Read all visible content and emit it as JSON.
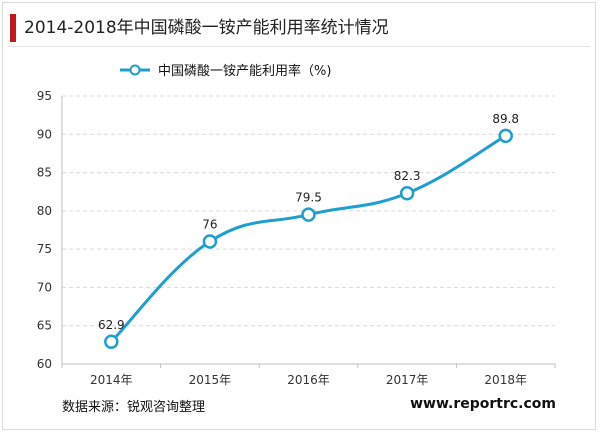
{
  "header": {
    "title": "2014-2018年中国磷酸一铵产能利用率统计情况"
  },
  "footer": {
    "source": "数据来源：锐观咨询整理",
    "website": "www.reportrc.com"
  },
  "colors": {
    "accent": "#c0161d",
    "series": "#1f9fd0",
    "grid": "#d9d9d9"
  },
  "chart_data": {
    "type": "line",
    "title": "2014-2018年中国磷酸一铵产能利用率统计情况",
    "xlabel": "",
    "ylabel": "",
    "categories": [
      "2014年",
      "2015年",
      "2016年",
      "2017年",
      "2018年"
    ],
    "series": [
      {
        "name": "中国磷酸一铵产能利用率（%)",
        "values": [
          62.9,
          76,
          79.5,
          82.3,
          89.8
        ]
      }
    ],
    "data_labels": [
      "62.9",
      "76",
      "79.5",
      "82.3",
      "89.8"
    ],
    "ylim": [
      60,
      95
    ],
    "yticks": [
      60,
      65,
      70,
      75,
      80,
      85,
      90,
      95
    ],
    "grid": true,
    "legend_position": "top-left",
    "smooth": true
  }
}
